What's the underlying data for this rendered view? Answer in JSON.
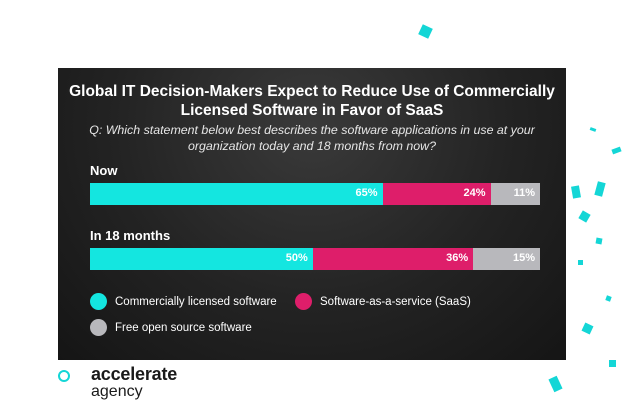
{
  "chart_data": {
    "type": "bar",
    "orientation": "horizontal-stacked-100",
    "title": "Global IT Decision-Makers Expect to Reduce Use of Commercially Licensed Software in Favor of SaaS",
    "question": "Q: Which statement below best describes the software applications in use at your organization today and 18 months from now?",
    "categories": [
      "Now",
      "In 18 months"
    ],
    "series": [
      {
        "name": "Commercially licensed software",
        "values": [
          65,
          50
        ],
        "value_labels": [
          "65%",
          "50%"
        ],
        "color": "#14e6e0"
      },
      {
        "name": "Software-as-a-service (SaaS)",
        "values": [
          24,
          36
        ],
        "value_labels": [
          "24%",
          "36%"
        ],
        "color": "#de1e6a"
      },
      {
        "name": "Free open source software",
        "values": [
          11,
          15
        ],
        "value_labels": [
          "11%",
          "15%"
        ],
        "color": "#b8b8bc"
      }
    ]
  },
  "brand": {
    "name": "accelerate",
    "subname": "agency",
    "accent_color": "#14d6d6"
  }
}
